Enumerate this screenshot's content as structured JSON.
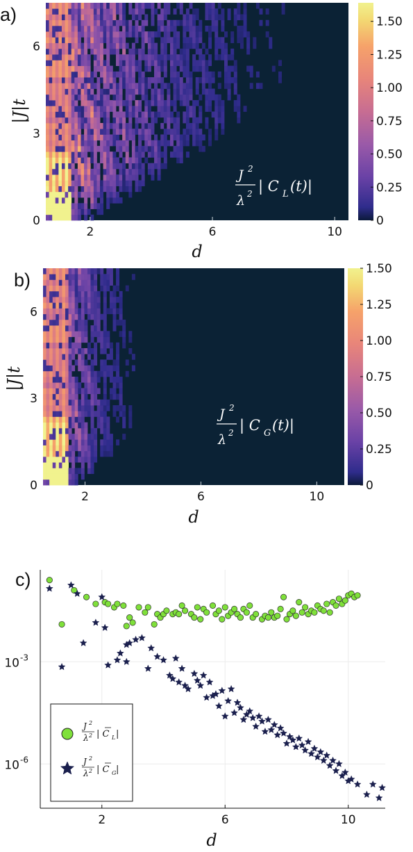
{
  "chart_data": [
    {
      "panel_label": "a)",
      "type": "heatmap",
      "xlabel": "d",
      "ylabel": "|J|t",
      "xlim": [
        0.55,
        10.45
      ],
      "ylim": [
        0,
        7.5
      ],
      "x_ticks": [
        "2",
        "6",
        "10"
      ],
      "y_ticks": [
        "0",
        "3",
        "6"
      ],
      "annotation": {
        "numerator": "J",
        "exponent": "2",
        "denominator": "λ",
        "body": "| C",
        "subscript": "L",
        "tail": "(t)|"
      },
      "colorbar": {
        "min": 0,
        "max": 1.64,
        "ticks": [
          "0",
          "0.25",
          "0.50",
          "0.75",
          "1.00",
          "1.25",
          "1.50"
        ]
      },
      "d_range": [
        0.55,
        10.45
      ],
      "t_range": [
        0,
        7.5
      ],
      "description_values": {
        "peak_value": 1.64,
        "peak_location": {
          "d": 1,
          "t": 0.7
        },
        "column_d1_mean": 0.65,
        "decay": "values decrease with d; large-d region dark except above a light cone"
      }
    },
    {
      "panel_label": "b)",
      "type": "heatmap",
      "xlabel": "d",
      "ylabel": "|J|t",
      "xlim": [
        0.55,
        10.95
      ],
      "ylim": [
        0,
        7.5
      ],
      "x_ticks": [
        "2",
        "6",
        "10"
      ],
      "y_ticks": [
        "0",
        "3",
        "6"
      ],
      "annotation": {
        "numerator": "J",
        "exponent": "2",
        "denominator": "λ",
        "body": "| C",
        "subscript": "G",
        "tail": "(t)|"
      },
      "colorbar": {
        "min": 0,
        "max": 1.5,
        "ticks": [
          "0",
          "0.25",
          "0.50",
          "0.75",
          "1.00",
          "1.25",
          "1.50"
        ]
      },
      "description_values": {
        "peak_value": 0.95,
        "peak_location": {
          "d": 1,
          "t": 0.7
        },
        "decay": "nonzero only for d <= 4"
      }
    },
    {
      "panel_label": "c)",
      "type": "scatter",
      "xlabel": "d",
      "ylabel": "",
      "yscale": "log",
      "xlim": [
        0,
        11.2
      ],
      "ylim_log10": [
        -7.3,
        -0.3
      ],
      "x_ticks": [
        "2",
        "6",
        "10"
      ],
      "y_ticks": [
        {
          "base": "10",
          "exp": "-3"
        },
        {
          "base": "10",
          "exp": "-6"
        }
      ],
      "grid": true,
      "legend_position": "bottom-left",
      "series": [
        {
          "name": "J²/λ² |C̄_L|",
          "legend": {
            "numerator": "J",
            "exponent": "2",
            "denominator": "λ",
            "body": "| C",
            "subscript": "L",
            "tail": "|"
          },
          "color": "#7fe03a",
          "marker": "circle",
          "points": [
            [
              0.3,
              -0.6
            ],
            [
              0.7,
              -1.9
            ],
            [
              1.1,
              -0.9
            ],
            [
              1.5,
              -1.1
            ],
            [
              1.8,
              -1.3
            ],
            [
              2.1,
              -1.25
            ],
            [
              2.2,
              -1.3
            ],
            [
              2.4,
              -1.4
            ],
            [
              2.5,
              -1.3
            ],
            [
              2.7,
              -1.35
            ],
            [
              2.8,
              -1.95
            ],
            [
              2.9,
              -1.7
            ],
            [
              3.0,
              -1.85
            ],
            [
              3.2,
              -1.4
            ],
            [
              3.4,
              -1.55
            ],
            [
              3.5,
              -1.4
            ],
            [
              3.7,
              -1.9
            ],
            [
              3.8,
              -1.6
            ],
            [
              3.9,
              -1.7
            ],
            [
              4.0,
              -1.6
            ],
            [
              4.1,
              -1.5
            ],
            [
              4.3,
              -1.6
            ],
            [
              4.4,
              -1.55
            ],
            [
              4.5,
              -1.6
            ],
            [
              4.6,
              -1.35
            ],
            [
              4.7,
              -1.5
            ],
            [
              4.9,
              -1.6
            ],
            [
              5.0,
              -1.7
            ],
            [
              5.1,
              -1.4
            ],
            [
              5.2,
              -1.75
            ],
            [
              5.3,
              -1.45
            ],
            [
              5.4,
              -1.55
            ],
            [
              5.6,
              -1.35
            ],
            [
              5.7,
              -1.6
            ],
            [
              5.8,
              -1.5
            ],
            [
              5.9,
              -1.75
            ],
            [
              6.0,
              -1.4
            ],
            [
              6.1,
              -1.65
            ],
            [
              6.2,
              -1.55
            ],
            [
              6.3,
              -1.45
            ],
            [
              6.4,
              -1.6
            ],
            [
              6.5,
              -1.7
            ],
            [
              6.6,
              -1.45
            ],
            [
              6.7,
              -1.55
            ],
            [
              6.8,
              -1.35
            ],
            [
              6.9,
              -1.7
            ],
            [
              7.0,
              -1.6
            ],
            [
              7.2,
              -1.75
            ],
            [
              7.3,
              -1.65
            ],
            [
              7.4,
              -1.7
            ],
            [
              7.5,
              -1.55
            ],
            [
              7.6,
              -1.7
            ],
            [
              7.7,
              -1.65
            ],
            [
              7.8,
              -1.45
            ],
            [
              7.9,
              -1.1
            ],
            [
              8.0,
              -1.75
            ],
            [
              8.1,
              -1.6
            ],
            [
              8.2,
              -1.5
            ],
            [
              8.3,
              -1.65
            ],
            [
              8.4,
              -1.25
            ],
            [
              8.5,
              -1.55
            ],
            [
              8.6,
              -1.4
            ],
            [
              8.7,
              -1.6
            ],
            [
              8.8,
              -1.5
            ],
            [
              8.9,
              -1.55
            ],
            [
              9.0,
              -1.35
            ],
            [
              9.1,
              -1.45
            ],
            [
              9.2,
              -1.5
            ],
            [
              9.3,
              -1.3
            ],
            [
              9.4,
              -1.55
            ],
            [
              9.5,
              -1.25
            ],
            [
              9.6,
              -1.35
            ],
            [
              9.7,
              -1.15
            ],
            [
              9.8,
              -1.3
            ],
            [
              9.9,
              -1.2
            ],
            [
              10.0,
              -1.05
            ],
            [
              10.1,
              -1.0
            ],
            [
              10.2,
              -1.1
            ],
            [
              10.3,
              -1.05
            ]
          ]
        },
        {
          "name": "J²/λ² |C̄_G|",
          "legend": {
            "numerator": "J",
            "exponent": "2",
            "denominator": "λ",
            "body": "| C",
            "subscript": "G",
            "tail": "|"
          },
          "color": "#1a1f4d",
          "marker": "star",
          "points": [
            [
              0.3,
              -0.85
            ],
            [
              0.7,
              -3.15
            ],
            [
              1.0,
              -0.75
            ],
            [
              1.2,
              -1.0
            ],
            [
              1.4,
              -2.45
            ],
            [
              1.8,
              -1.85
            ],
            [
              2.0,
              -1.1
            ],
            [
              2.1,
              -2.0
            ],
            [
              2.2,
              -3.1
            ],
            [
              2.5,
              -2.95
            ],
            [
              2.6,
              -2.75
            ],
            [
              2.8,
              -3.0
            ],
            [
              2.8,
              -2.5
            ],
            [
              2.9,
              -2.45
            ],
            [
              3.1,
              -2.35
            ],
            [
              3.3,
              -2.3
            ],
            [
              3.5,
              -3.2
            ],
            [
              3.6,
              -2.6
            ],
            [
              3.8,
              -2.85
            ],
            [
              4.0,
              -2.95
            ],
            [
              4.2,
              -3.4
            ],
            [
              4.3,
              -3.5
            ],
            [
              4.4,
              -2.9
            ],
            [
              4.5,
              -3.6
            ],
            [
              4.6,
              -3.2
            ],
            [
              4.7,
              -3.7
            ],
            [
              4.8,
              -3.8
            ],
            [
              5.0,
              -3.35
            ],
            [
              5.1,
              -3.55
            ],
            [
              5.2,
              -3.7
            ],
            [
              5.3,
              -3.4
            ],
            [
              5.4,
              -4.05
            ],
            [
              5.5,
              -3.6
            ],
            [
              5.6,
              -4.0
            ],
            [
              5.7,
              -3.95
            ],
            [
              5.8,
              -4.3
            ],
            [
              5.9,
              -3.85
            ],
            [
              6.0,
              -4.6
            ],
            [
              6.1,
              -4.15
            ],
            [
              6.2,
              -3.8
            ],
            [
              6.3,
              -4.5
            ],
            [
              6.4,
              -4.2
            ],
            [
              6.5,
              -4.35
            ],
            [
              6.6,
              -4.7
            ],
            [
              6.7,
              -4.55
            ],
            [
              6.8,
              -4.45
            ],
            [
              6.9,
              -4.65
            ],
            [
              7.0,
              -4.9
            ],
            [
              7.1,
              -4.6
            ],
            [
              7.2,
              -4.75
            ],
            [
              7.3,
              -5.05
            ],
            [
              7.4,
              -4.7
            ],
            [
              7.5,
              -5.0
            ],
            [
              7.6,
              -4.85
            ],
            [
              7.7,
              -5.15
            ],
            [
              7.8,
              -4.95
            ],
            [
              7.9,
              -5.1
            ],
            [
              8.0,
              -5.4
            ],
            [
              8.1,
              -5.2
            ],
            [
              8.2,
              -5.3
            ],
            [
              8.3,
              -5.5
            ],
            [
              8.4,
              -5.25
            ],
            [
              8.5,
              -5.45
            ],
            [
              8.6,
              -5.6
            ],
            [
              8.7,
              -5.35
            ],
            [
              8.8,
              -5.7
            ],
            [
              8.9,
              -5.55
            ],
            [
              9.0,
              -5.8
            ],
            [
              9.1,
              -5.65
            ],
            [
              9.2,
              -5.9
            ],
            [
              9.3,
              -5.75
            ],
            [
              9.4,
              -6.05
            ],
            [
              9.5,
              -5.9
            ],
            [
              9.6,
              -6.2
            ],
            [
              9.7,
              -6.0
            ],
            [
              9.8,
              -6.35
            ],
            [
              9.9,
              -6.25
            ],
            [
              10.0,
              -6.5
            ],
            [
              10.1,
              -6.45
            ],
            [
              10.3,
              -6.6
            ],
            [
              10.6,
              -6.9
            ],
            [
              10.8,
              -6.6
            ],
            [
              11.0,
              -7.0
            ],
            [
              11.1,
              -6.7
            ]
          ]
        }
      ]
    }
  ]
}
